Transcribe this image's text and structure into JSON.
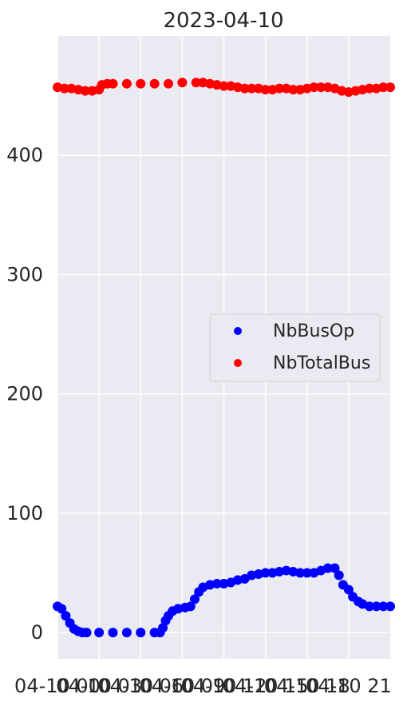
{
  "chart_data": {
    "type": "scatter",
    "title": "2023-04-10",
    "xlabel": "",
    "ylabel": "",
    "x_tick_labels": [
      "04-10 00",
      "04-10 03",
      "04-10 06",
      "04-10 09",
      "04-10 12",
      "04-10 15",
      "04-10 18",
      "04-10 21"
    ],
    "y_ticks": [
      0,
      100,
      200,
      300,
      400
    ],
    "ylim": [
      -22,
      500
    ],
    "xlim_hours": [
      0,
      24
    ],
    "grid": true,
    "legend_position": "center-right",
    "series": [
      {
        "name": "NbBusOp",
        "color": "#0000ff",
        "points": [
          [
            0.0,
            22
          ],
          [
            0.3,
            20
          ],
          [
            0.6,
            14
          ],
          [
            0.9,
            8
          ],
          [
            1.2,
            3
          ],
          [
            1.5,
            1
          ],
          [
            1.8,
            0
          ],
          [
            2.1,
            0
          ],
          [
            3.0,
            0
          ],
          [
            4.0,
            0
          ],
          [
            5.0,
            0
          ],
          [
            6.0,
            0
          ],
          [
            7.0,
            0
          ],
          [
            7.4,
            0
          ],
          [
            7.6,
            4
          ],
          [
            7.8,
            10
          ],
          [
            8.0,
            14
          ],
          [
            8.3,
            18
          ],
          [
            8.7,
            20
          ],
          [
            9.2,
            21
          ],
          [
            9.6,
            22
          ],
          [
            9.9,
            28
          ],
          [
            10.2,
            34
          ],
          [
            10.5,
            38
          ],
          [
            11.0,
            40
          ],
          [
            11.5,
            41
          ],
          [
            12.0,
            41
          ],
          [
            12.5,
            42
          ],
          [
            13.0,
            44
          ],
          [
            13.5,
            45
          ],
          [
            14.0,
            48
          ],
          [
            14.5,
            49
          ],
          [
            15.0,
            50
          ],
          [
            15.5,
            50
          ],
          [
            16.0,
            51
          ],
          [
            16.5,
            52
          ],
          [
            17.0,
            51
          ],
          [
            17.5,
            50
          ],
          [
            18.0,
            50
          ],
          [
            18.5,
            50
          ],
          [
            19.0,
            52
          ],
          [
            19.5,
            54
          ],
          [
            20.0,
            54
          ],
          [
            20.3,
            48
          ],
          [
            20.6,
            40
          ],
          [
            21.0,
            36
          ],
          [
            21.3,
            30
          ],
          [
            21.7,
            26
          ],
          [
            22.0,
            24
          ],
          [
            22.5,
            22
          ],
          [
            23.0,
            22
          ],
          [
            23.5,
            22
          ],
          [
            24.0,
            22
          ]
        ]
      },
      {
        "name": "NbTotalBus",
        "color": "#ff0000",
        "points": [
          [
            0.0,
            457
          ],
          [
            0.5,
            456
          ],
          [
            1.0,
            456
          ],
          [
            1.5,
            455
          ],
          [
            2.0,
            454
          ],
          [
            2.5,
            454
          ],
          [
            3.0,
            455
          ],
          [
            3.2,
            459
          ],
          [
            3.6,
            460
          ],
          [
            4.0,
            460
          ],
          [
            5.0,
            460
          ],
          [
            6.0,
            460
          ],
          [
            7.0,
            460
          ],
          [
            8.0,
            460
          ],
          [
            9.0,
            461
          ],
          [
            10.0,
            461
          ],
          [
            10.5,
            461
          ],
          [
            11.0,
            460
          ],
          [
            11.5,
            459
          ],
          [
            12.0,
            458
          ],
          [
            12.5,
            458
          ],
          [
            13.0,
            457
          ],
          [
            13.5,
            456
          ],
          [
            14.0,
            456
          ],
          [
            14.5,
            456
          ],
          [
            15.0,
            455
          ],
          [
            15.5,
            455
          ],
          [
            16.0,
            456
          ],
          [
            16.5,
            456
          ],
          [
            17.0,
            455
          ],
          [
            17.5,
            455
          ],
          [
            18.0,
            456
          ],
          [
            18.5,
            457
          ],
          [
            19.0,
            457
          ],
          [
            19.5,
            457
          ],
          [
            20.0,
            456
          ],
          [
            20.5,
            454
          ],
          [
            21.0,
            453
          ],
          [
            21.5,
            454
          ],
          [
            22.0,
            455
          ],
          [
            22.5,
            456
          ],
          [
            23.0,
            456
          ],
          [
            23.5,
            457
          ],
          [
            24.0,
            457
          ]
        ]
      }
    ]
  }
}
